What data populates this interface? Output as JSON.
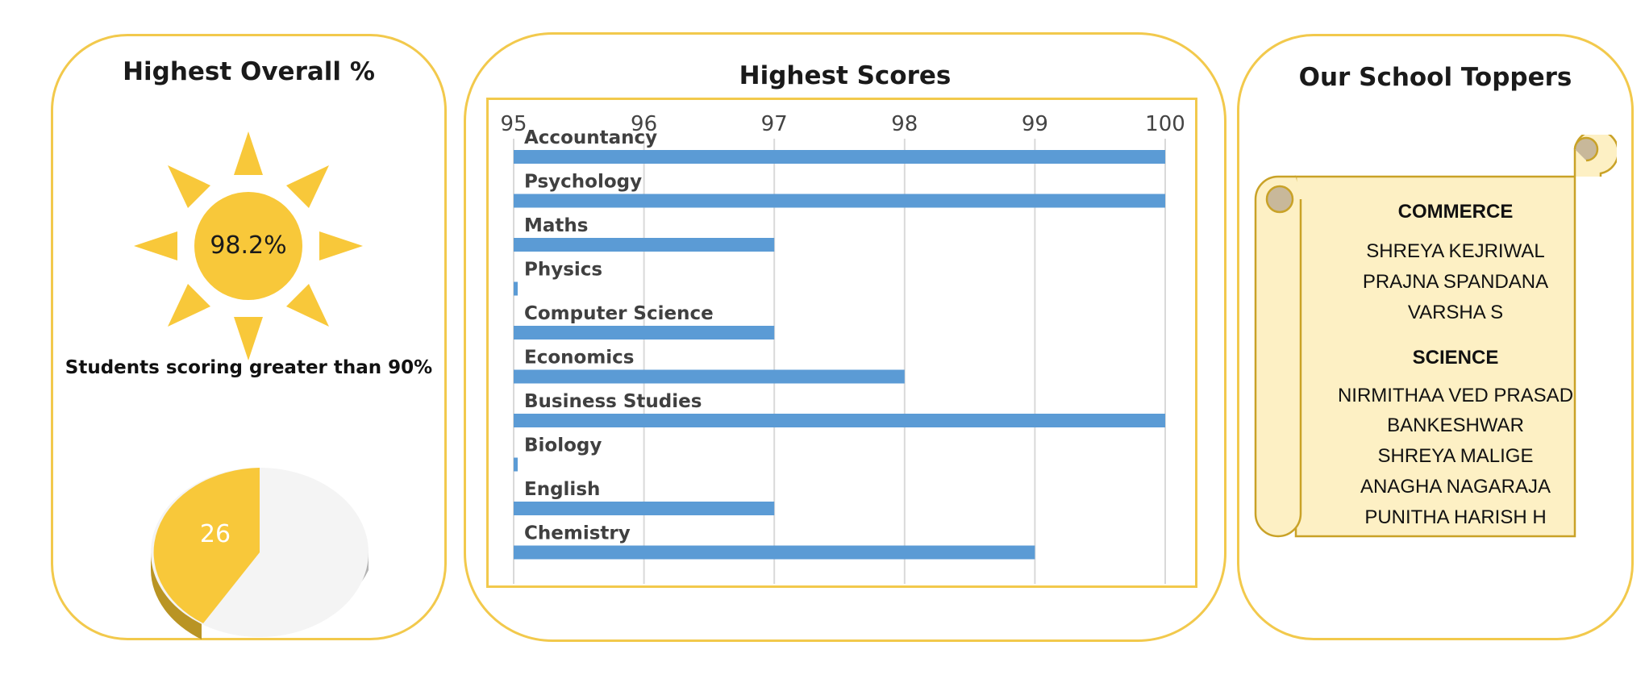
{
  "left_panel": {
    "title": "Highest Overall %",
    "sun_value": "98.2%",
    "students_caption": "Students scoring greater than 90%",
    "pie_value": "26",
    "colors": {
      "sun": "#f8c83a",
      "pie_highlight": "#f8c83a",
      "pie_rest": "#f4f4f4"
    }
  },
  "chart_data": {
    "type": "bar",
    "orientation": "horizontal",
    "title": "Highest Scores",
    "xlabel": "",
    "ylabel": "",
    "xlim": [
      95,
      100
    ],
    "x_ticks": [
      "95",
      "96",
      "97",
      "98",
      "99",
      "100"
    ],
    "x_axis_position": "top",
    "grid": true,
    "bar_color": "#5b9bd5",
    "categories": [
      "Accountancy",
      "Psychology",
      "Maths",
      "Physics",
      "Computer Science",
      "Economics",
      "Business Studies",
      "Biology",
      "English",
      "Chemistry"
    ],
    "values": [
      100,
      100,
      97,
      95,
      97,
      98,
      100,
      95,
      97,
      99
    ]
  },
  "right_panel": {
    "title": "Our School Toppers",
    "commerce_heading": "COMMERCE",
    "commerce_names": [
      "SHREYA KEJRIWAL",
      "PRAJNA SPANDANA",
      "VARSHA S"
    ],
    "science_heading": "SCIENCE",
    "science_names": [
      "NIRMITHAA VED PRASAD",
      "BANKESHWAR",
      "SHREYA MALIGE",
      "ANAGHA NAGARAJA",
      "PUNITHA HARISH H"
    ],
    "colors": {
      "scroll_fill": "#fdf0c4",
      "scroll_border": "#c9a227"
    }
  }
}
